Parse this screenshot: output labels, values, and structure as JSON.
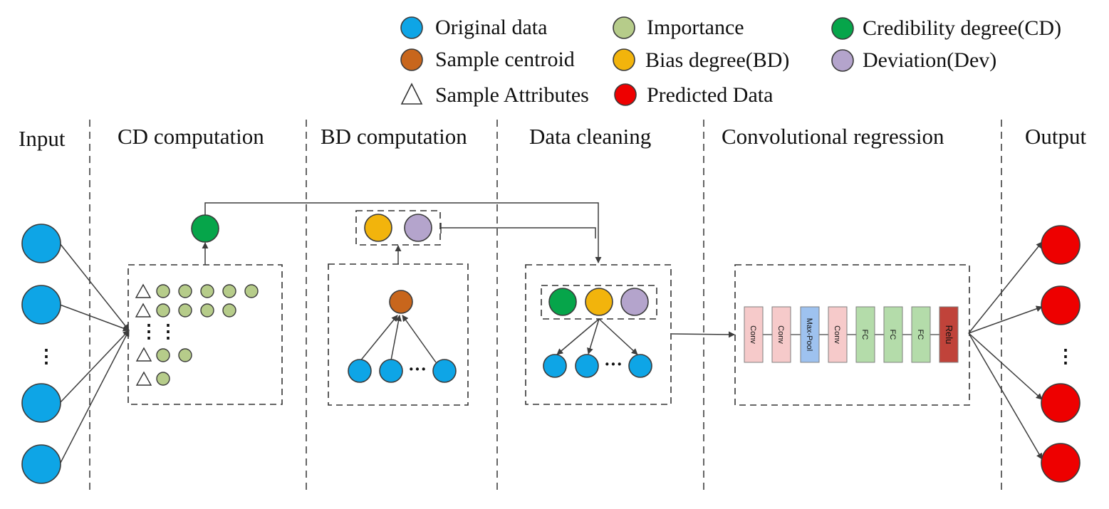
{
  "legend": {
    "original_data": "Original data",
    "importance": "Importance",
    "credibility_degree": "Credibility degree(CD)",
    "sample_centroid": "Sample centroid",
    "bias_degree": "Bias degree(BD)",
    "deviation": "Deviation(Dev)",
    "sample_attributes": "Sample Attributes",
    "predicted_data": "Predicted Data"
  },
  "sections": {
    "input": "Input",
    "cd": "CD computation",
    "bd": "BD computation",
    "cleaning": "Data cleaning",
    "regression": "Convolutional regression",
    "output": "Output"
  },
  "ellipsis": {
    "vertical": "⋮",
    "horizontal": "···"
  },
  "layers": {
    "conv": "Conv",
    "maxpool": "Max-Pool",
    "fc": "FC",
    "relu": "Relu"
  },
  "colors": {
    "original_data": "#0ea5e6",
    "importance": "#b6cc8a",
    "credibility_degree": "#06a54a",
    "sample_centroid": "#c8661c",
    "bias_degree": "#f2b40c",
    "deviation": "#b4a4cc",
    "predicted_data": "#ee0000",
    "conv_layer": "#f6caca",
    "maxpool_layer": "#9ec2ef",
    "fc_layer": "#b4dcaa",
    "relu_layer": "#c0433a"
  }
}
